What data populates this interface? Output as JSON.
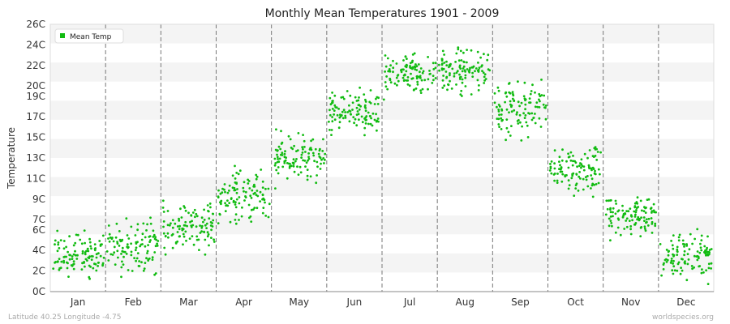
{
  "chart_data": {
    "type": "scatter",
    "title": "Monthly Mean Temperatures 1901 - 2009",
    "xlabel": "",
    "ylabel": "Temperature",
    "categories": [
      "Jan",
      "Feb",
      "Mar",
      "Apr",
      "May",
      "Jun",
      "Jul",
      "Aug",
      "Sep",
      "Oct",
      "Nov",
      "Dec"
    ],
    "ylim": [
      0,
      26
    ],
    "y_ticks": [
      0,
      2,
      4,
      6,
      7,
      9,
      11,
      13,
      15,
      17,
      19,
      20,
      22,
      24,
      26
    ],
    "y_tick_labels": [
      "0C",
      "2C",
      "4C",
      "6C",
      "7C",
      "9C",
      "11C",
      "13C",
      "15C",
      "17C",
      "19C",
      "20C",
      "22C",
      "24C",
      "26C"
    ],
    "grid": "alternating horizontal bands, dashed vertical month separators",
    "legend_position": "top-left",
    "series": [
      {
        "name": "Mean Temp",
        "color": "#11bb11",
        "points_per_month": 109,
        "monthly_ranges": [
          [
            0.3,
            6.4
          ],
          [
            0.6,
            7.8
          ],
          [
            2.6,
            10.0
          ],
          [
            5.8,
            12.9
          ],
          [
            9.6,
            16.4
          ],
          [
            14.8,
            20.2
          ],
          [
            18.4,
            24.0
          ],
          [
            18.5,
            24.5
          ],
          [
            14.2,
            21.4
          ],
          [
            8.6,
            15.3
          ],
          [
            4.2,
            10.0
          ],
          [
            0.0,
            6.6
          ]
        ]
      }
    ]
  },
  "footer": {
    "left": "Latitude 40.25 Longitude -4.75",
    "right": "worldspecies.org"
  }
}
